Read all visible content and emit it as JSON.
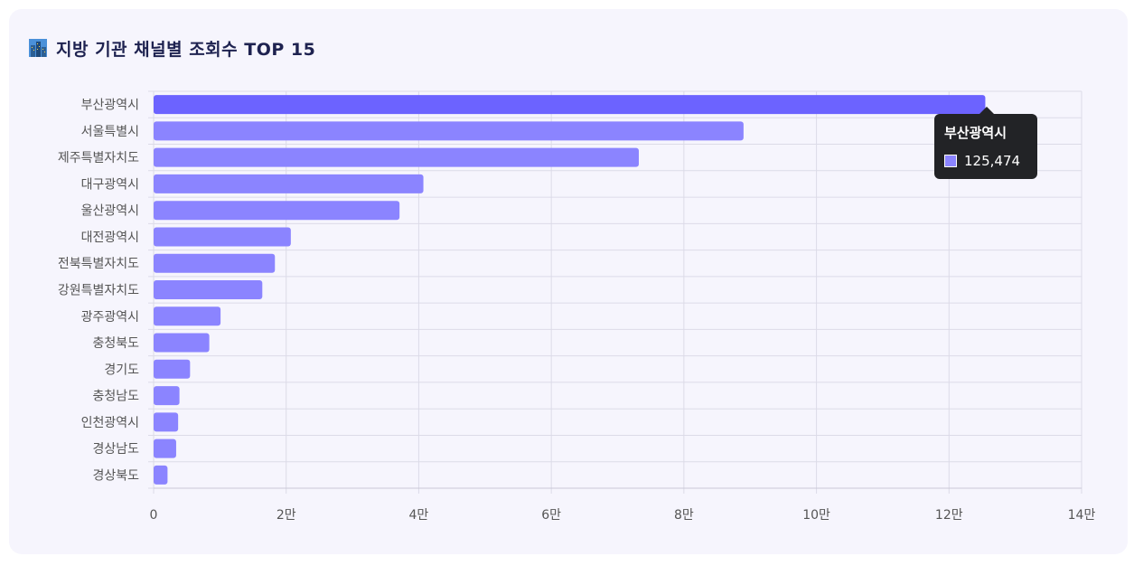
{
  "header": {
    "title": "지방 기관 채널별 조회수 TOP 15",
    "icon": "city-icon"
  },
  "tooltip": {
    "title": "부산광역시",
    "value": "125,474"
  },
  "colors": {
    "bar": "#8b84ff",
    "bar_highlight": "#6c63ff",
    "grid": "#dcdbe8"
  },
  "chart_data": {
    "type": "bar",
    "orientation": "horizontal",
    "title": "지방 기관 채널별 조회수 TOP 15",
    "categories": [
      "부산광역시",
      "서울특별시",
      "제주특별자치도",
      "대구광역시",
      "울산광역시",
      "대전광역시",
      "전북특별자치도",
      "강원특별자치도",
      "광주광역시",
      "충청북도",
      "경기도",
      "충청남도",
      "인천광역시",
      "경상남도",
      "경상북도"
    ],
    "values": [
      125474,
      89000,
      73200,
      40700,
      37100,
      20700,
      18300,
      16400,
      10100,
      8400,
      5500,
      3900,
      3700,
      3400,
      2100
    ],
    "xlim": [
      0,
      140000
    ],
    "x_ticks": [
      0,
      20000,
      40000,
      60000,
      80000,
      100000,
      120000,
      140000
    ],
    "x_tick_labels": [
      "0",
      "2만",
      "4만",
      "6만",
      "8만",
      "10만",
      "12만",
      "14만"
    ],
    "grid": true,
    "legend": "none",
    "highlighted": "부산광역시"
  }
}
